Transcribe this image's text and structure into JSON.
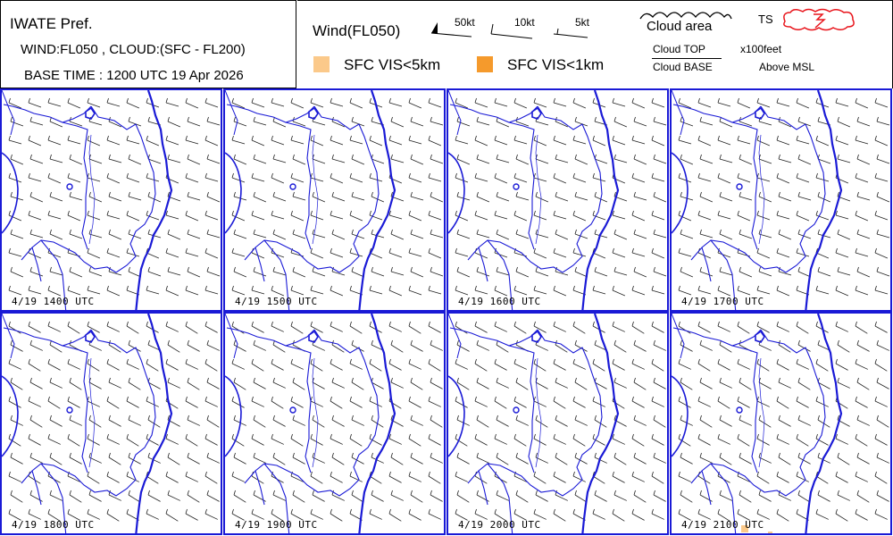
{
  "title": {
    "region": "IWATE Pref.",
    "layers": "WIND:FL050 , CLOUD:(SFC - FL200)",
    "base_time": "BASE TIME : 1200 UTC 19 Apr 2026"
  },
  "legend": {
    "wind_title": "Wind(FL050)",
    "barb_50": "50kt",
    "barb_10": "10kt",
    "barb_5": "5kt",
    "cloud_area": "Cloud area",
    "ts": "TS",
    "vis5": "SFC VIS<5km",
    "vis1": "SFC VIS<1km",
    "cloud_top": "Cloud TOP",
    "cloud_base": "Cloud BASE",
    "units": "x100feet",
    "units2": "Above MSL",
    "colors": {
      "vis5": "#fbc98a",
      "vis1": "#f59a2c",
      "ts": "#e8131a",
      "border": "#1a1ad6"
    }
  },
  "panels": [
    {
      "label": "4/19  1400  UTC"
    },
    {
      "label": "4/19  1500  UTC"
    },
    {
      "label": "4/19  1600  UTC"
    },
    {
      "label": "4/19  1700  UTC"
    },
    {
      "label": "4/19  1800  UTC"
    },
    {
      "label": "4/19  1900  UTC"
    },
    {
      "label": "4/19  2000  UTC"
    },
    {
      "label": "4/19  2100  UTC"
    }
  ]
}
